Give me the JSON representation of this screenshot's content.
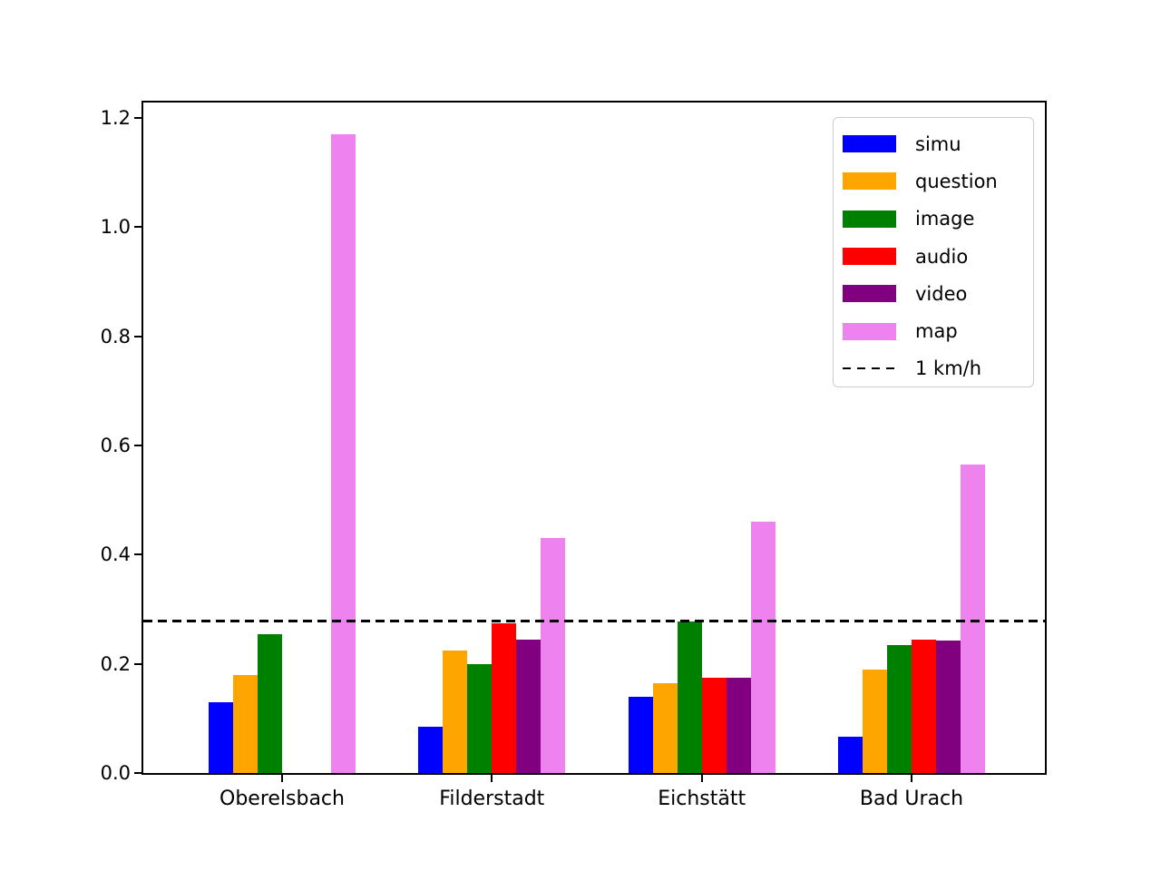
{
  "figure": {
    "background_color": "#ffffff",
    "plot_background_color": "#ffffff",
    "spine_color": "#000000"
  },
  "chart_data": {
    "type": "bar",
    "title": "",
    "xlabel": "",
    "ylabel": "",
    "categories": [
      "Oberelsbach",
      "Filderstadt",
      "Eichstätt",
      "Bad Urach"
    ],
    "series": [
      {
        "name": "simu",
        "color": "#0000ff",
        "values": [
          0.13,
          0.085,
          0.14,
          0.067
        ]
      },
      {
        "name": "question",
        "color": "#ffa500",
        "values": [
          0.18,
          0.225,
          0.165,
          0.19
        ]
      },
      {
        "name": "image",
        "color": "#008000",
        "values": [
          0.255,
          0.2,
          0.277,
          0.235
        ]
      },
      {
        "name": "audio",
        "color": "#ff0000",
        "values": [
          0,
          0.275,
          0.175,
          0.245
        ]
      },
      {
        "name": "video",
        "color": "#800080",
        "values": [
          0,
          0.245,
          0.175,
          0.243
        ]
      },
      {
        "name": "map",
        "color": "#ee82ee",
        "values": [
          1.17,
          0.43,
          0.46,
          0.565
        ]
      }
    ],
    "reference_line": {
      "label": "1 km/h",
      "value": 0.2778,
      "color": "#000000",
      "style": "dashed"
    },
    "yticks": [
      0.0,
      0.2,
      0.4,
      0.6,
      0.8,
      1.0,
      1.2
    ],
    "ytick_labels": [
      "0.0",
      "0.2",
      "0.4",
      "0.6",
      "0.8",
      "1.0",
      "1.2"
    ],
    "ylim": [
      0,
      1.2285
    ],
    "grid": false,
    "legend": {
      "position": "upper right",
      "entries": [
        "simu",
        "question",
        "image",
        "audio",
        "video",
        "map",
        "1 km/h"
      ]
    }
  }
}
